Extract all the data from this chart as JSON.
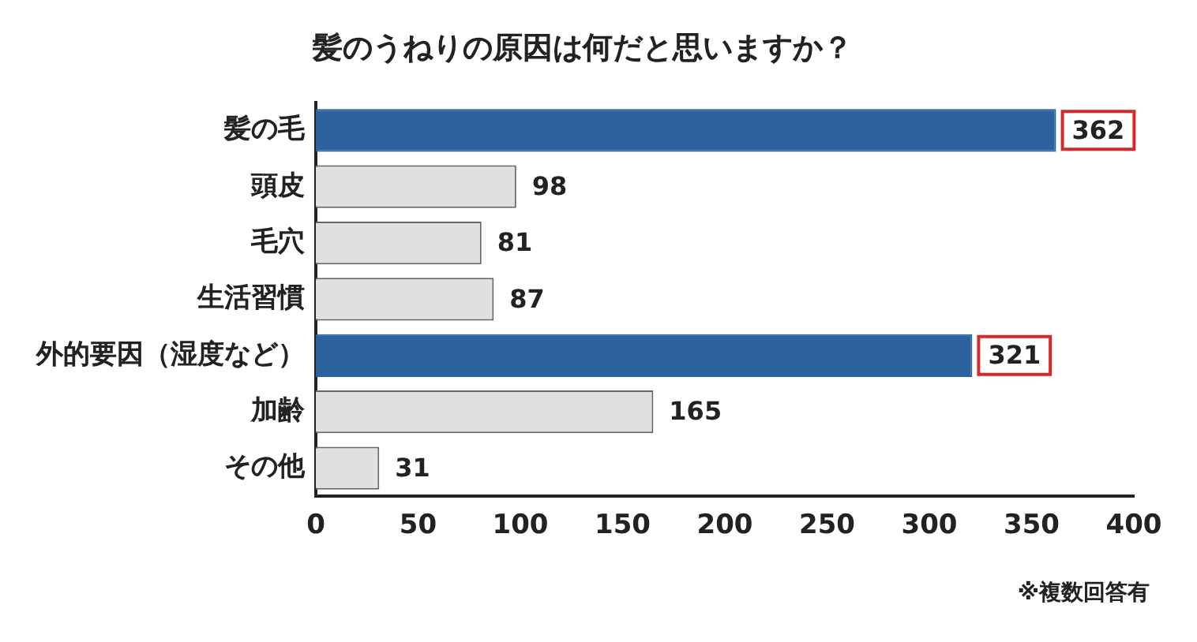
{
  "chart_data": {
    "type": "bar",
    "orientation": "horizontal",
    "title": "髪のうねりの原因は何だと思いますか？",
    "categories": [
      "髪の毛",
      "頭皮",
      "毛穴",
      "生活習慣",
      "外的要因（湿度など）",
      "加齢",
      "その他"
    ],
    "values": [
      362,
      98,
      81,
      87,
      321,
      165,
      31
    ],
    "colors": [
      "#2d62a0",
      "#e0e0e0",
      "#e0e0e0",
      "#e0e0e0",
      "#2d62a0",
      "#e0e0e0",
      "#e0e0e0"
    ],
    "xlim": [
      0,
      400
    ],
    "xticks": [
      0,
      50,
      100,
      150,
      200,
      250,
      300,
      350,
      400
    ],
    "data_labels": true,
    "grid": false,
    "legend": false,
    "annotations": [
      "※複数回答有"
    ]
  }
}
